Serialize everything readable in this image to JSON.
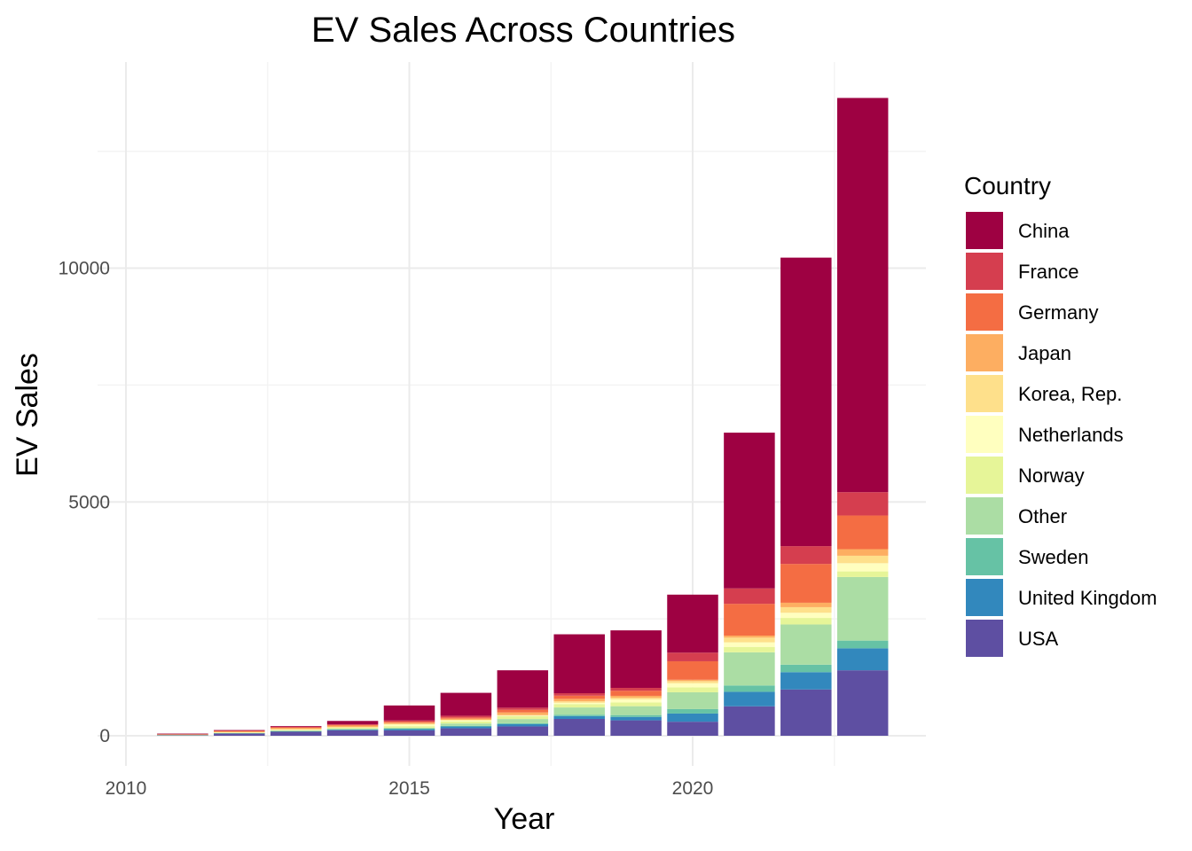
{
  "chart_data": {
    "type": "bar",
    "stacked": true,
    "title": "EV Sales Across Countries",
    "xlabel": "Year",
    "ylabel": "EV Sales",
    "xlim": [
      2010,
      2024
    ],
    "ylim": [
      0,
      14000
    ],
    "x_ticks": [
      2010,
      2015,
      2020
    ],
    "y_ticks": [
      0,
      5000,
      10000
    ],
    "grid": true,
    "legend_title": "Country",
    "legend_position": "right",
    "categories": [
      2011,
      2012,
      2013,
      2014,
      2015,
      2016,
      2017,
      2018,
      2019,
      2020,
      2021,
      2022,
      2023
    ],
    "series": [
      {
        "name": "USA",
        "color": "#5E4FA2",
        "values": [
          18,
          55,
          96,
          118,
          115,
          160,
          200,
          360,
          330,
          300,
          630,
          990,
          1400
        ]
      },
      {
        "name": "United Kingdom",
        "color": "#3288BD",
        "values": [
          1,
          3,
          4,
          15,
          28,
          38,
          48,
          60,
          72,
          175,
          310,
          370,
          470
        ]
      },
      {
        "name": "Sweden",
        "color": "#66C2A5",
        "values": [
          0,
          1,
          1,
          5,
          9,
          14,
          20,
          30,
          40,
          95,
          135,
          160,
          165
        ]
      },
      {
        "name": "Other",
        "color": "#ABDDA4",
        "values": [
          3,
          6,
          10,
          14,
          20,
          50,
          90,
          155,
          190,
          360,
          710,
          860,
          1360
        ]
      },
      {
        "name": "Norway",
        "color": "#E6F598",
        "values": [
          2,
          5,
          9,
          18,
          34,
          45,
          62,
          73,
          80,
          105,
          115,
          140,
          120
        ]
      },
      {
        "name": "Netherlands",
        "color": "#FFFFBF",
        "values": [
          0,
          5,
          22,
          15,
          45,
          28,
          10,
          27,
          67,
          88,
          98,
          110,
          175
        ]
      },
      {
        "name": "Korea, Rep.",
        "color": "#FEE08B",
        "values": [
          0,
          0,
          1,
          1,
          3,
          6,
          14,
          32,
          35,
          46,
          100,
          120,
          160
        ]
      },
      {
        "name": "Japan",
        "color": "#FDAE61",
        "values": [
          13,
          25,
          29,
          32,
          24,
          25,
          56,
          52,
          40,
          29,
          44,
          95,
          140
        ]
      },
      {
        "name": "Germany",
        "color": "#F46D43",
        "values": [
          1,
          3,
          7,
          13,
          23,
          25,
          55,
          68,
          110,
          395,
          680,
          830,
          720
        ]
      },
      {
        "name": "France",
        "color": "#D53E4F",
        "values": [
          3,
          9,
          14,
          16,
          27,
          37,
          45,
          53,
          60,
          185,
          330,
          380,
          500
        ]
      },
      {
        "name": "China",
        "color": "#9E0142",
        "values": [
          5,
          10,
          15,
          70,
          320,
          490,
          800,
          1260,
          1230,
          1240,
          3330,
          6170,
          8430
        ]
      }
    ],
    "legend_order": [
      "China",
      "France",
      "Germany",
      "Japan",
      "Korea, Rep.",
      "Netherlands",
      "Norway",
      "Other",
      "Sweden",
      "United Kingdom",
      "USA"
    ]
  }
}
